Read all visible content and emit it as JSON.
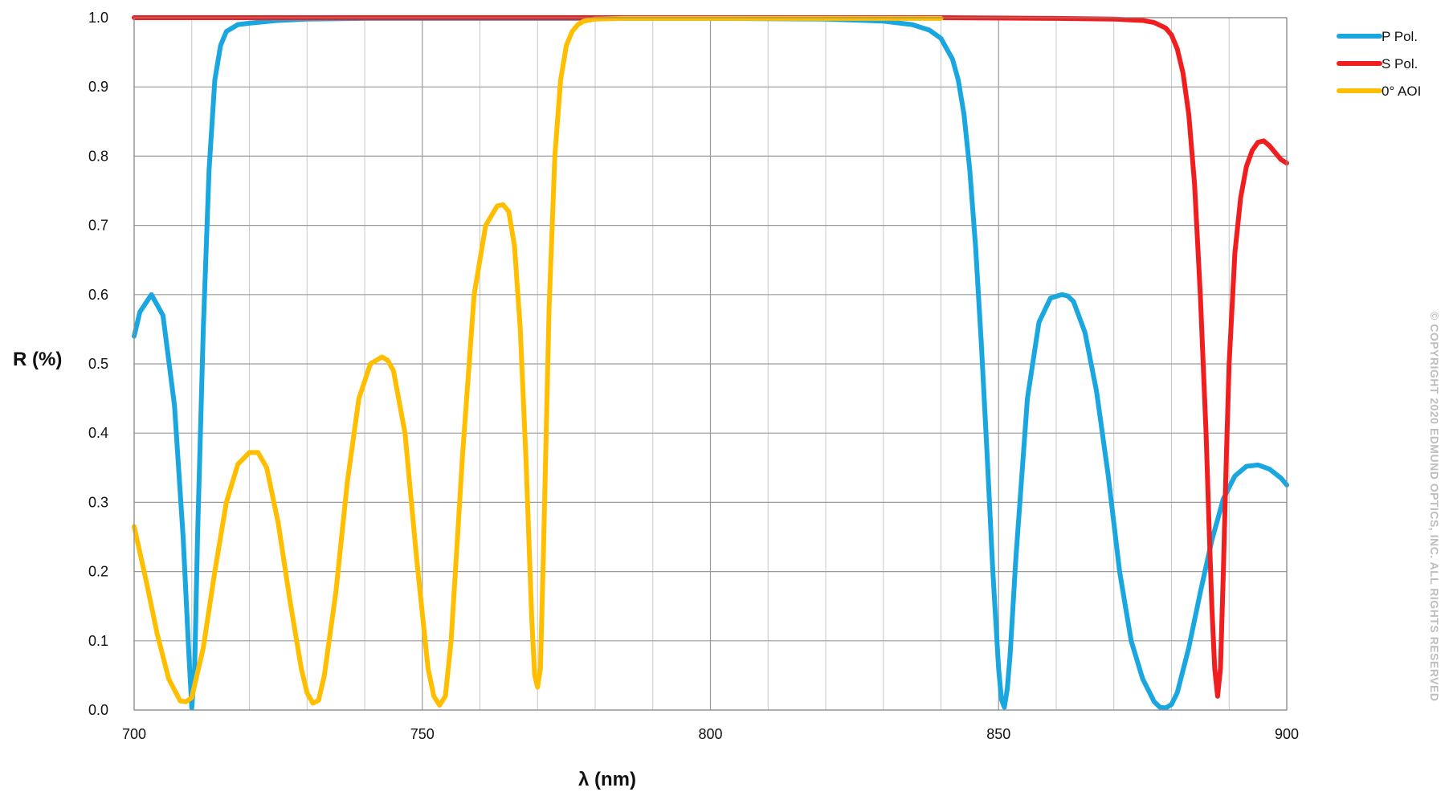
{
  "chart_data": {
    "type": "line",
    "title": "",
    "xlabel": "λ (nm)",
    "ylabel": "R (%)",
    "xlim": [
      700,
      900
    ],
    "ylim": [
      0.0,
      1.0
    ],
    "x_ticks": [
      700,
      750,
      800,
      850,
      900
    ],
    "x_tick_labels": [
      "700",
      "750",
      "800",
      "850",
      "900"
    ],
    "x_minor_step": 10,
    "y_ticks": [
      0.0,
      0.1,
      0.2,
      0.3,
      0.4,
      0.5,
      0.6,
      0.7,
      0.8,
      0.9,
      1.0
    ],
    "y_tick_labels": [
      "0.0",
      "0.1",
      "0.2",
      "0.3",
      "0.4",
      "0.5",
      "0.6",
      "0.7",
      "0.8",
      "0.9",
      "1.0"
    ],
    "grid": true,
    "legend_position": "top-right, outside plot",
    "series": [
      {
        "name": "P Pol.",
        "color": "#1aa7e0",
        "x": [
          700,
          701,
          703,
          705,
          707,
          708.5,
          709.5,
          710,
          710.5,
          711,
          712,
          713,
          714,
          715,
          716,
          718,
          720,
          725,
          730,
          740,
          750,
          760,
          770,
          780,
          800,
          820,
          830,
          835,
          838,
          840,
          842,
          843,
          844,
          845,
          846,
          847,
          848,
          849,
          850,
          850.5,
          851,
          851.5,
          852,
          853,
          855,
          857,
          859,
          861,
          862,
          863,
          865,
          867,
          869,
          871,
          873,
          875,
          877,
          878,
          879,
          880,
          881,
          883,
          885,
          887,
          889,
          891,
          893,
          895,
          897,
          899,
          900
        ],
        "y": [
          0.54,
          0.575,
          0.6,
          0.57,
          0.44,
          0.25,
          0.08,
          0.003,
          0.06,
          0.25,
          0.55,
          0.78,
          0.91,
          0.96,
          0.98,
          0.99,
          0.992,
          0.996,
          0.998,
          0.999,
          0.999,
          0.999,
          0.999,
          0.999,
          0.999,
          0.998,
          0.995,
          0.99,
          0.982,
          0.97,
          0.94,
          0.91,
          0.86,
          0.78,
          0.67,
          0.53,
          0.37,
          0.2,
          0.06,
          0.015,
          0.004,
          0.03,
          0.08,
          0.22,
          0.45,
          0.56,
          0.595,
          0.6,
          0.598,
          0.59,
          0.545,
          0.46,
          0.34,
          0.2,
          0.1,
          0.045,
          0.012,
          0.004,
          0.003,
          0.008,
          0.025,
          0.09,
          0.17,
          0.245,
          0.305,
          0.338,
          0.352,
          0.354,
          0.348,
          0.335,
          0.325
        ]
      },
      {
        "name": "S Pol.",
        "color": "#f01e1e",
        "x": [
          700,
          720,
          740,
          760,
          780,
          800,
          820,
          840,
          860,
          870,
          875,
          877,
          879,
          880,
          881,
          882,
          883,
          884,
          885,
          886,
          886.5,
          887,
          887.5,
          888,
          888.5,
          889,
          889.5,
          890,
          891,
          892,
          893,
          894,
          895,
          896,
          897,
          898,
          899,
          900
        ],
        "y": [
          1.0,
          1.0,
          1.0,
          1.0,
          1.0,
          1.0,
          1.0,
          1.0,
          0.999,
          0.998,
          0.996,
          0.993,
          0.985,
          0.975,
          0.955,
          0.92,
          0.86,
          0.76,
          0.6,
          0.4,
          0.27,
          0.15,
          0.06,
          0.02,
          0.06,
          0.2,
          0.36,
          0.5,
          0.66,
          0.74,
          0.785,
          0.808,
          0.82,
          0.822,
          0.815,
          0.805,
          0.795,
          0.79
        ]
      },
      {
        "name": "0° AOI",
        "color": "#ffbf00",
        "x": [
          700,
          702,
          704,
          706,
          708,
          709,
          710,
          712,
          714,
          716,
          718,
          720,
          721.5,
          723,
          725,
          727,
          729,
          730,
          731,
          732,
          733,
          735,
          737,
          739,
          741,
          743,
          744,
          745,
          747,
          749,
          751,
          752,
          753,
          754,
          755,
          757,
          759,
          761,
          763,
          764,
          765,
          766,
          767,
          768,
          769,
          769.5,
          770,
          770.5,
          771,
          772,
          773,
          774,
          775,
          776,
          777,
          778,
          780,
          785,
          790,
          800,
          810,
          820,
          830,
          840
        ],
        "y": [
          0.265,
          0.19,
          0.11,
          0.045,
          0.013,
          0.012,
          0.018,
          0.09,
          0.2,
          0.3,
          0.355,
          0.372,
          0.372,
          0.35,
          0.27,
          0.16,
          0.06,
          0.025,
          0.01,
          0.014,
          0.05,
          0.17,
          0.33,
          0.45,
          0.5,
          0.51,
          0.505,
          0.49,
          0.4,
          0.22,
          0.06,
          0.02,
          0.007,
          0.02,
          0.1,
          0.37,
          0.6,
          0.7,
          0.728,
          0.73,
          0.72,
          0.67,
          0.55,
          0.36,
          0.13,
          0.05,
          0.033,
          0.06,
          0.22,
          0.58,
          0.8,
          0.91,
          0.96,
          0.98,
          0.99,
          0.995,
          0.998,
          0.999,
          0.999,
          0.999,
          0.999,
          0.999,
          0.999,
          0.999
        ]
      }
    ]
  },
  "copyright": "© COPYRIGHT 2020 EDMUND OPTICS, INC. ALL RIGHTS RESERVED"
}
